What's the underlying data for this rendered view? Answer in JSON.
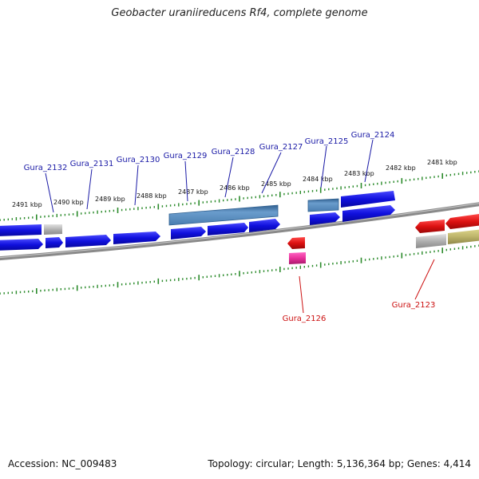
{
  "title": "Geobacter uraniireducens Rf4, complete genome",
  "footer": {
    "accession": "Accession: NC_009483",
    "stats": "Topology: circular; Length: 5,136,364 bp; Genes: 4,414"
  },
  "colors": {
    "backbone": "#8a8a8a",
    "tick": "#2a8a2a",
    "cds_forward": "#1010dd",
    "cds_forward_highlight": "#5a8fc0",
    "cds_reverse": "#dd1111",
    "cds_reverse_highlight": "#e8309a",
    "other_gene": "#b0b0b0",
    "other_gene_2": "#bdb46a",
    "label_forward": "#1a1aa6",
    "label_reverse": "#cc1111"
  },
  "kbp_labels": [
    "2491 kbp",
    "2490 kbp",
    "2489 kbp",
    "2488 kbp",
    "2487 kbp",
    "2486 kbp",
    "2485 kbp",
    "2484 kbp",
    "2483 kbp",
    "2482 kbp",
    "2481 kbp"
  ],
  "gene_labels": {
    "forward": [
      "Gura_2132",
      "Gura_2131",
      "Gura_2130",
      "Gura_2129",
      "Gura_2128",
      "Gura_2127",
      "Gura_2125",
      "Gura_2124"
    ],
    "reverse": [
      "Gura_2126",
      "Gura_2123"
    ]
  }
}
